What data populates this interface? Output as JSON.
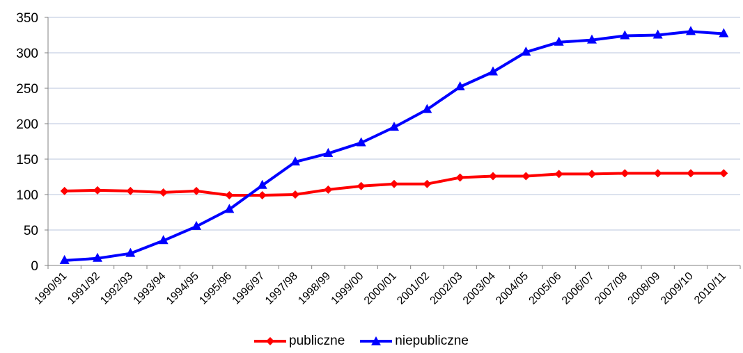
{
  "chart_data": {
    "type": "line",
    "title": "",
    "xlabel": "",
    "ylabel": "",
    "ylim": [
      0,
      350
    ],
    "yticks": [
      0,
      50,
      100,
      150,
      200,
      250,
      300,
      350
    ],
    "grid": true,
    "legend_position": "bottom",
    "categories": [
      "1990/91",
      "1991/92",
      "1992/93",
      "1993/94",
      "1994/95",
      "1995/96",
      "1996/97",
      "1997/98",
      "1998/99",
      "1999/00",
      "2000/01",
      "2001/02",
      "2002/03",
      "2003/04",
      "2004/05",
      "2005/06",
      "2006/07",
      "2007/08",
      "2008/09",
      "2009/10",
      "2010/11"
    ],
    "series": [
      {
        "name": "publiczne",
        "color": "#ff0000",
        "marker": "diamond",
        "values": [
          105,
          106,
          105,
          103,
          105,
          99,
          99,
          100,
          107,
          112,
          115,
          115,
          124,
          126,
          126,
          129,
          129,
          130,
          130,
          130,
          130
        ]
      },
      {
        "name": "niepubliczne",
        "color": "#0000ff",
        "marker": "triangle",
        "values": [
          7,
          10,
          17,
          35,
          55,
          79,
          113,
          146,
          158,
          173,
          195,
          220,
          252,
          273,
          301,
          315,
          318,
          324,
          325,
          330,
          327
        ]
      }
    ]
  }
}
